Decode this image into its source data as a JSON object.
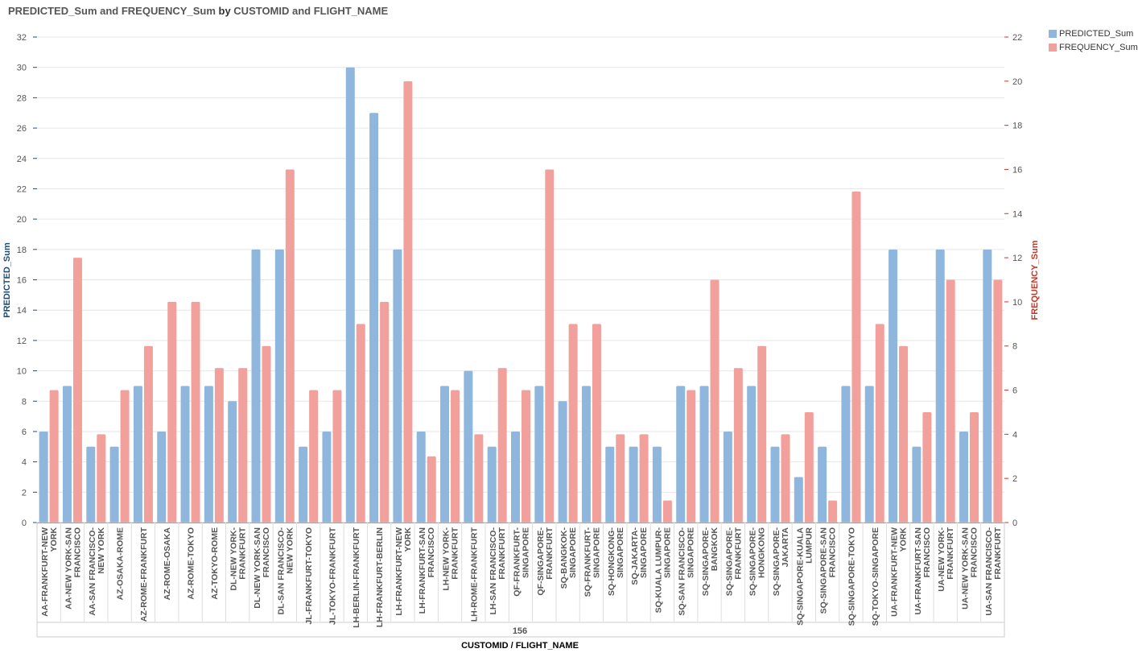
{
  "chart_data": {
    "type": "bar",
    "title": {
      "part1": "PREDICTED_Sum and FREQUENCY_Sum",
      "by": "by",
      "part2": "CUSTOMID and FLIGHT_NAME"
    },
    "ylabel_left": "PREDICTED_Sum",
    "ylabel_right": "FREQUENCY_Sum",
    "xlabel": "CUSTOMID / FLIGHT_NAME",
    "group_label": "156",
    "ylim_left": [
      0,
      32
    ],
    "ylim_right": [
      0,
      22
    ],
    "yticks_left": [
      0,
      2,
      4,
      6,
      8,
      10,
      12,
      14,
      16,
      18,
      20,
      22,
      24,
      26,
      28,
      30,
      32
    ],
    "yticks_right": [
      0,
      2,
      4,
      6,
      8,
      10,
      12,
      14,
      16,
      18,
      20,
      22
    ],
    "colors": {
      "predicted": "#8fb6dc",
      "frequency": "#f2a09c",
      "left_axis_label": "#1f4e79",
      "right_axis_label": "#c0392b"
    },
    "categories": [
      [
        "AA-FRANKFURT-NEW",
        "YORK"
      ],
      [
        "AA-NEW YORK-SAN",
        "FRANCISCO"
      ],
      [
        "AA-SAN FRANCISCO-",
        "NEW YORK"
      ],
      [
        "AZ-OSAKA-ROME"
      ],
      [
        "AZ-ROME-FRANKFURT"
      ],
      [
        "AZ-ROME-OSAKA"
      ],
      [
        "AZ-ROME-TOKYO"
      ],
      [
        "AZ-TOKYO-ROME"
      ],
      [
        "DL-NEW YORK-",
        "FRANKFURT"
      ],
      [
        "DL-NEW YORK-SAN",
        "FRANCISCO"
      ],
      [
        "DL-SAN FRANCISCO-",
        "NEW YORK"
      ],
      [
        "JL-FRANKFURT-TOKYO"
      ],
      [
        "JL-TOKYO-FRANKFURT"
      ],
      [
        "LH-BERLIN-FRANKFURT"
      ],
      [
        "LH-FRANKFURT-BERLIN"
      ],
      [
        "LH-FRANKFURT-NEW",
        "YORK"
      ],
      [
        "LH-FRANKFURT-SAN",
        "FRANCISCO"
      ],
      [
        "LH-NEW YORK-",
        "FRANKFURT"
      ],
      [
        "LH-ROME-FRANKFURT"
      ],
      [
        "LH-SAN FRANCISCO-",
        "FRANKFURT"
      ],
      [
        "QF-FRANKFURT-",
        "SINGAPORE"
      ],
      [
        "QF-SINGAPORE-",
        "FRANKFURT"
      ],
      [
        "SQ-BANGKOK-",
        "SINGAPORE"
      ],
      [
        "SQ-FRANKFURT-",
        "SINGAPORE"
      ],
      [
        "SQ-HONGKONG-",
        "SINGAPORE"
      ],
      [
        "SQ-JAKARTA-",
        "SINGAPORE"
      ],
      [
        "SQ-KUALA LUMPUR-",
        "SINGAPORE"
      ],
      [
        "SQ-SAN FRANCISCO-",
        "SINGAPORE"
      ],
      [
        "SQ-SINGAPORE-",
        "BANGKOK"
      ],
      [
        "SQ-SINGAPORE-",
        "FRANKFURT"
      ],
      [
        "SQ-SINGAPORE-",
        "HONGKONG"
      ],
      [
        "SQ-SINGAPORE-",
        "JAKARTA"
      ],
      [
        "SQ-SINGAPORE-KUALA",
        "LUMPUR"
      ],
      [
        "SQ-SINGAPORE-SAN",
        "FRANCISCO"
      ],
      [
        "SQ-SINGAPORE-TOKYO"
      ],
      [
        "SQ-TOKYO-SINGAPORE"
      ],
      [
        "UA-FRANKFURT-NEW",
        "YORK"
      ],
      [
        "UA-FRANKFURT-SAN",
        "FRANCISCO"
      ],
      [
        "UA-NEW YORK-",
        "FRANKFURT"
      ],
      [
        "UA-NEW YORK-SAN",
        "FRANCISCO"
      ],
      [
        "UA-SAN FRANCISCO-",
        "FRANKFURT"
      ]
    ],
    "series": [
      {
        "name": "PREDICTED_Sum",
        "axis": "left",
        "values": [
          6,
          9,
          5,
          5,
          9,
          6,
          9,
          9,
          8,
          18,
          18,
          5,
          6,
          30,
          27,
          18,
          6,
          9,
          10,
          5,
          6,
          9,
          8,
          9,
          5,
          5,
          5,
          9,
          9,
          6,
          9,
          5,
          3,
          5,
          9,
          9,
          18,
          5,
          18,
          6,
          18
        ]
      },
      {
        "name": "FREQUENCY_Sum",
        "axis": "right",
        "values": [
          6,
          12,
          4,
          6,
          8,
          10,
          10,
          7,
          7,
          8,
          16,
          6,
          6,
          9,
          10,
          20,
          3,
          6,
          4,
          7,
          6,
          16,
          9,
          9,
          4,
          4,
          1,
          6,
          11,
          7,
          8,
          4,
          5,
          1,
          15,
          9,
          8,
          5,
          11,
          5,
          11
        ]
      }
    ]
  }
}
